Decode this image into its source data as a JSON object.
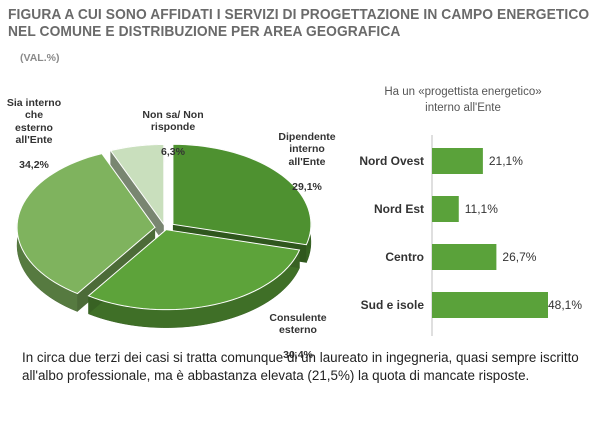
{
  "header": {
    "title_line1": "FIGURA A CUI SONO AFFIDATI I SERVIZI DI PROGETTAZIONE IN CAMPO ENERGETICO",
    "title_line2": "NEL COMUNE E DISTRIBUZIONE PER AREA GEOGRAFICA",
    "subtitle": "(VAL.%)"
  },
  "chart_data": [
    {
      "type": "pie",
      "title": "",
      "slices": [
        {
          "label": "Dipendente\ninterno\nall'Ente",
          "value": 29.1,
          "value_label": "29,1%",
          "color": "#4e9130"
        },
        {
          "label": "Consulente\nesterno",
          "value": 30.4,
          "value_label": "30,4%",
          "color": "#5da33a"
        },
        {
          "label": "Sia interno\nche\nesterno\nall'Ente",
          "value": 34.2,
          "value_label": "34,2%",
          "color": "#7fb35e"
        },
        {
          "label": "Non sa/ Non\nrisponde",
          "value": 6.3,
          "value_label": "6,3%",
          "color": "#c9dfbd"
        }
      ]
    },
    {
      "type": "bar",
      "orientation": "horizontal",
      "title": "Ha un «progettista energetico»\ninterno all'Ente",
      "categories": [
        "Nord Ovest",
        "Nord Est",
        "Centro",
        "Sud e isole"
      ],
      "values": [
        21.1,
        11.1,
        26.7,
        48.1
      ],
      "value_labels": [
        "21,1%",
        "11,1%",
        "26,7%",
        "48,1%"
      ],
      "xlim": [
        0,
        48.1
      ],
      "color": "#5aa23a"
    }
  ],
  "caption": "In circa due terzi dei casi si tratta comunque di un laureato in ingegneria, quasi sempre iscritto all'albo professionale, ma è abbastanza elevata (21,5%) la quota di mancate risposte."
}
